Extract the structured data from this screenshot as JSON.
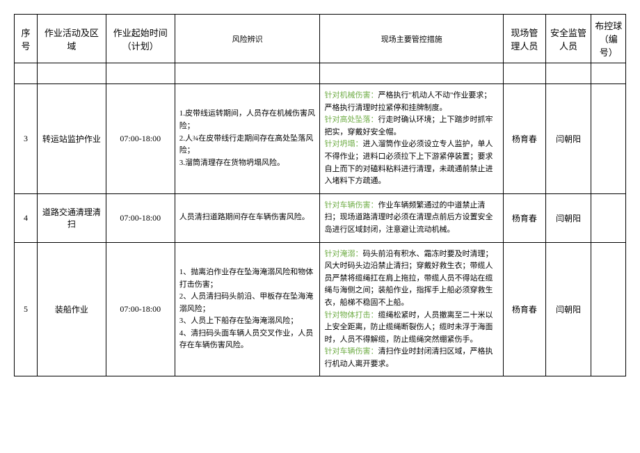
{
  "headers": {
    "seq": "序号",
    "activity": "作业活动及区域",
    "time": "作业起始时间（计划）",
    "risk": "风险辨识",
    "measure": "现场主要管控措施",
    "manager": "现场管理人员",
    "supervisor": "安全监管人员",
    "ball": "布控球（编号）"
  },
  "rows": [
    {
      "seq": "3",
      "activity": "转运站监护作业",
      "time": "07:00-18:00",
      "risk_items": [
        "1.皮带线运转期间，人员存在机械伤害风险；",
        "2.人¾在皮带线行走期间存在高处坠落风险；",
        "3.溜筒清理存在货物坍塌风险。"
      ],
      "measures": [
        {
          "label": "针对机械伤害：",
          "text": "严格执行\"机动人不动\"作业要求；严格执行清理时拉紧停和挂牌制度。"
        },
        {
          "label": "针对高处坠落：",
          "text": "行走时确认环境；上下踏步时抓牢把实，穿戴好安全帽。"
        },
        {
          "label": "针对坍塌：",
          "text": "进入溜筒作业必须设立专人监护，单人不得作业；进料口必须拉下上下游紧停装置；要求自上而下的对磕料粘料进行清理，未疏通前禁止进入堵料下方疏通。"
        }
      ],
      "manager": "杨育春",
      "supervisor": "闫朝阳",
      "ball": ""
    },
    {
      "seq": "4",
      "activity": "道路交通清理清扫",
      "time": "07:00-18:00",
      "risk_items": [
        "人员清扫道路期间存在车辆伤害风险。"
      ],
      "measures": [
        {
          "label": "针对车辆伤害：",
          "text": "作业车辆频繁通过的中道禁止清扫；现场道路清理时必须在清理点前后方设置安全岛进行区域封闭，注意避让流动机械。"
        }
      ],
      "manager": "杨育春",
      "supervisor": "闫朝阳",
      "ball": ""
    },
    {
      "seq": "5",
      "activity": "装船作业",
      "time": "07:00-18:00",
      "risk_items": [
        "1、抛离泊作业存在坠海淹溺风险和物体打击伤害；",
        "2、人员清扫码头前沿、甲板存在坠海淹溺风险；",
        "3、人员上下船存在坠海淹溺风险；",
        "4、清扫码头面车辆人员交叉作业，人员存在车辆伤害风险。"
      ],
      "measures": [
        {
          "label": "针对淹溺：",
          "text": "码头前沿有积水、霜冻时要及时清理；风大时码头边沿禁止清扫；穿戴好救生衣；带缆人员严禁将缆绳扛在肩上拖拉，带缆人员不得站在缆绳与海侧之间；装船作业，指挥手上船必须穿救生衣，船梯不稳固不上船。"
        },
        {
          "label": "针对物体打击：",
          "text": "缆绳松紧时，人员撤离至二十米以上安全距离，防止缆绳断裂伤人；缆时未浮于海面时，人员不得解缆，防止缆绳突然绷紧伤手。"
        },
        {
          "label": "针对车辆伤害：",
          "text": "清扫作业时封闭清扫区域，严格执行机动人离开要求。"
        }
      ],
      "manager": "杨育春",
      "supervisor": "闫朝阳",
      "ball": ""
    }
  ],
  "colors": {
    "highlight": "#70ad47",
    "border": "#000000",
    "background": "#ffffff"
  }
}
